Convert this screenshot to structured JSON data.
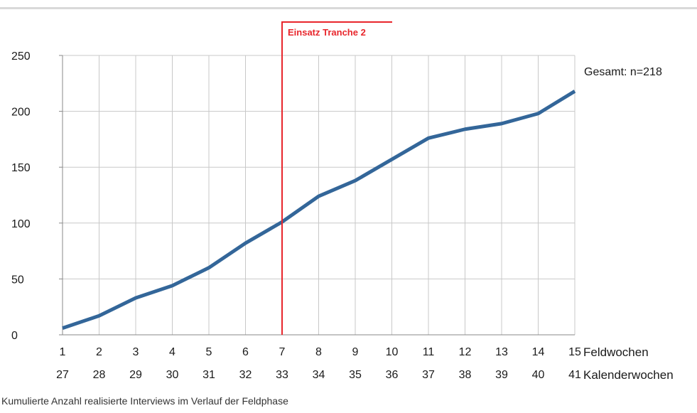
{
  "caption": "Kumulierte Anzahl realisierte Interviews im Verlauf der Feldphase",
  "colors": {
    "line": "#336699",
    "marker": "#e8262c",
    "grid": "#c8c8c8"
  },
  "chart_data": {
    "type": "line",
    "title": "",
    "ylabel": "",
    "ylim": [
      0,
      250
    ],
    "yticks": [
      0,
      50,
      100,
      150,
      200,
      250
    ],
    "grid": true,
    "x": [
      1,
      2,
      3,
      4,
      5,
      6,
      7,
      8,
      9,
      10,
      11,
      12,
      13,
      14,
      15
    ],
    "x_secondary": [
      27,
      28,
      29,
      30,
      31,
      32,
      33,
      34,
      35,
      36,
      37,
      38,
      39,
      40,
      41
    ],
    "xlabel": "Feldwochen",
    "xlabel_secondary": "Kalenderwochen",
    "series": [
      {
        "values": [
          6,
          17,
          33,
          44,
          60,
          82,
          101,
          124,
          138,
          157,
          176,
          184,
          189,
          198,
          218
        ]
      }
    ],
    "annotations": {
      "vertical_line": {
        "x": 7,
        "label": "Einsatz Tranche 2"
      },
      "total_label": "Gesamt: n=218"
    }
  }
}
